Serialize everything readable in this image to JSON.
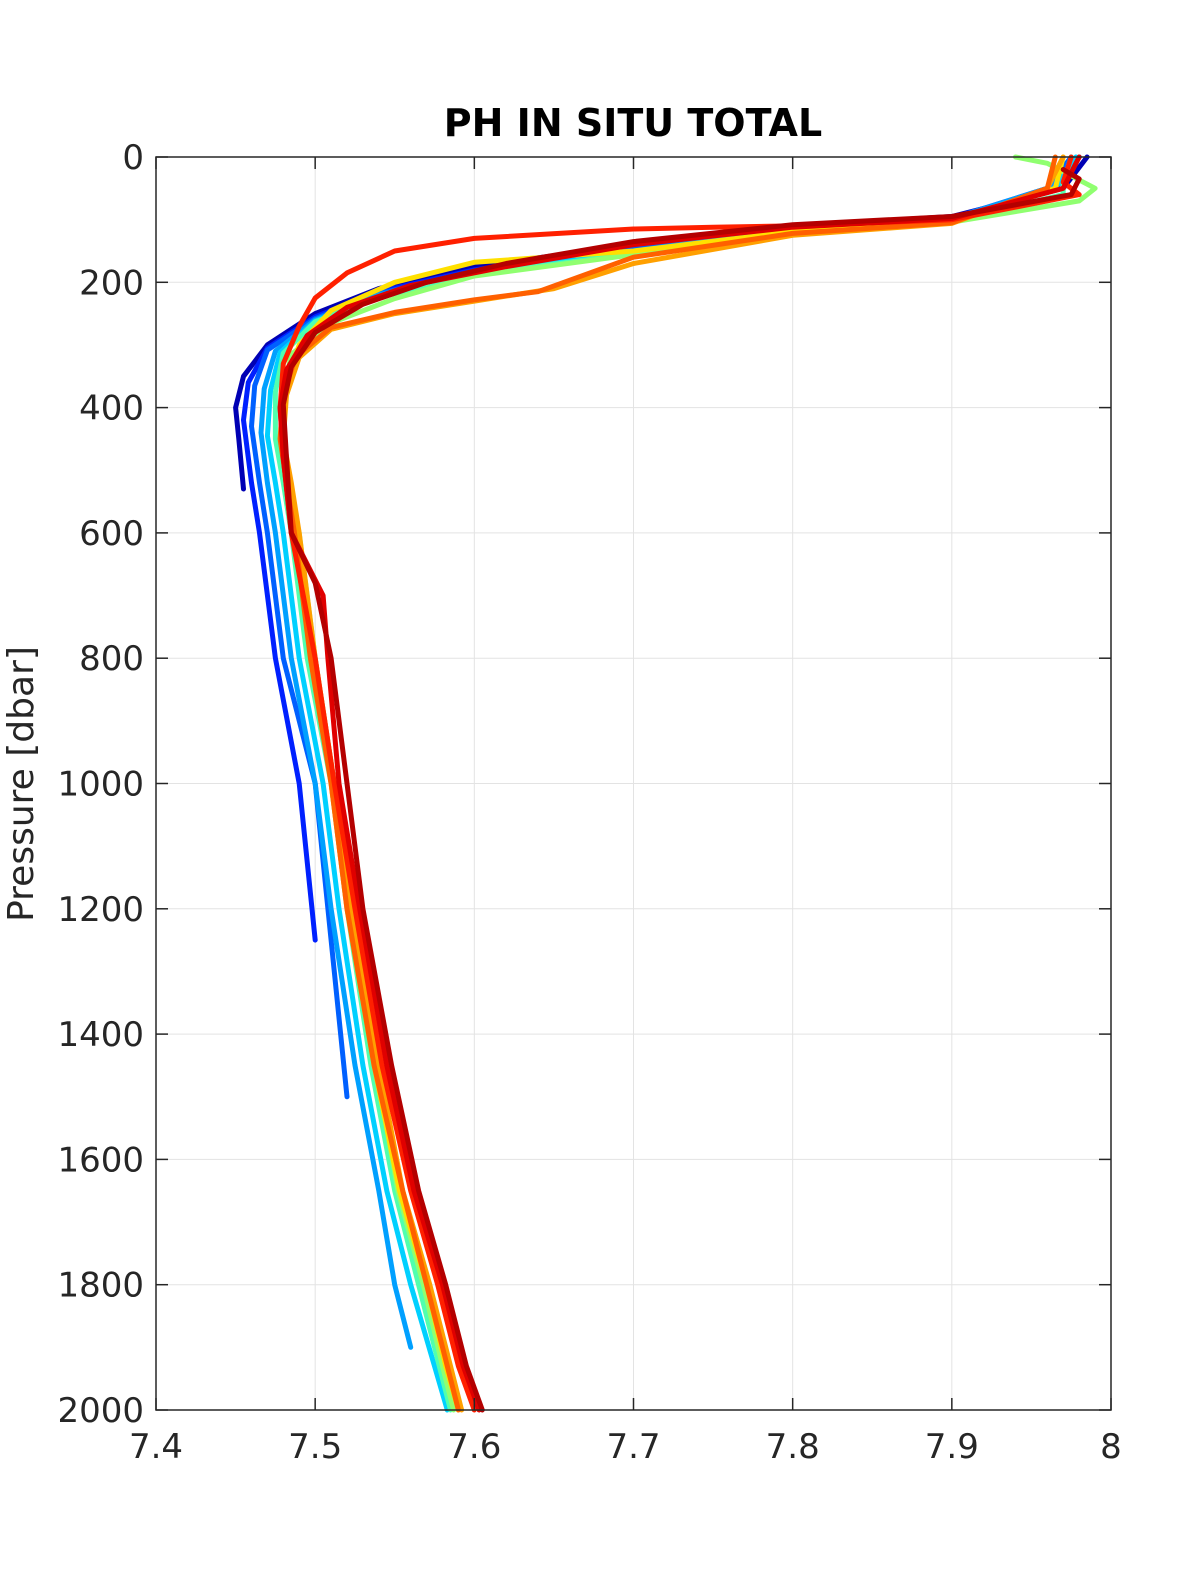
{
  "chart_data": {
    "type": "line",
    "title": "PH IN SITU TOTAL",
    "xlabel": "",
    "ylabel": "Pressure [dbar]",
    "xlim": [
      7.4,
      8
    ],
    "ylim": [
      0,
      2000
    ],
    "y_reversed": true,
    "grid": true,
    "legend": "none",
    "x_ticks": [
      "7.4",
      "7.5",
      "7.6",
      "7.7",
      "7.8",
      "7.9",
      "8"
    ],
    "y_ticks": [
      "0",
      "200",
      "400",
      "600",
      "800",
      "1000",
      "1200",
      "1400",
      "1600",
      "1800",
      "2000"
    ],
    "series": [
      {
        "color": "#0000b4",
        "points": [
          [
            7.985,
            0
          ],
          [
            7.97,
            50
          ],
          [
            7.9,
            95
          ],
          [
            7.8,
            110
          ],
          [
            7.7,
            140
          ],
          [
            7.6,
            175
          ],
          [
            7.54,
            210
          ],
          [
            7.5,
            250
          ],
          [
            7.47,
            300
          ],
          [
            7.455,
            350
          ],
          [
            7.45,
            400
          ],
          [
            7.452,
            450
          ],
          [
            7.455,
            530
          ]
        ]
      },
      {
        "color": "#0020ff",
        "points": [
          [
            7.98,
            0
          ],
          [
            7.965,
            50
          ],
          [
            7.9,
            97
          ],
          [
            7.8,
            112
          ],
          [
            7.7,
            145
          ],
          [
            7.6,
            180
          ],
          [
            7.54,
            215
          ],
          [
            7.5,
            255
          ],
          [
            7.47,
            305
          ],
          [
            7.458,
            360
          ],
          [
            7.455,
            420
          ],
          [
            7.46,
            520
          ],
          [
            7.465,
            600
          ],
          [
            7.475,
            800
          ],
          [
            7.49,
            1000
          ],
          [
            7.5,
            1250
          ]
        ]
      },
      {
        "color": "#0060ff",
        "points": [
          [
            7.975,
            0
          ],
          [
            7.96,
            50
          ],
          [
            7.9,
            98
          ],
          [
            7.8,
            113
          ],
          [
            7.7,
            147
          ],
          [
            7.6,
            182
          ],
          [
            7.54,
            218
          ],
          [
            7.5,
            258
          ],
          [
            7.47,
            308
          ],
          [
            7.462,
            365
          ],
          [
            7.46,
            430
          ],
          [
            7.465,
            520
          ],
          [
            7.47,
            600
          ],
          [
            7.48,
            800
          ],
          [
            7.5,
            1000
          ],
          [
            7.51,
            1250
          ],
          [
            7.52,
            1500
          ]
        ]
      },
      {
        "color": "#00a0ff",
        "points": [
          [
            7.98,
            0
          ],
          [
            7.96,
            50
          ],
          [
            7.9,
            99
          ],
          [
            7.8,
            115
          ],
          [
            7.7,
            150
          ],
          [
            7.6,
            185
          ],
          [
            7.54,
            220
          ],
          [
            7.5,
            260
          ],
          [
            7.475,
            310
          ],
          [
            7.468,
            370
          ],
          [
            7.466,
            440
          ],
          [
            7.47,
            520
          ],
          [
            7.475,
            600
          ],
          [
            7.485,
            800
          ],
          [
            7.5,
            1000
          ],
          [
            7.51,
            1200
          ],
          [
            7.525,
            1450
          ],
          [
            7.54,
            1650
          ],
          [
            7.55,
            1800
          ],
          [
            7.56,
            1900
          ]
        ]
      },
      {
        "color": "#00d0ff",
        "points": [
          [
            7.978,
            0
          ],
          [
            7.965,
            50
          ],
          [
            7.9,
            100
          ],
          [
            7.8,
            116
          ],
          [
            7.7,
            152
          ],
          [
            7.6,
            187
          ],
          [
            7.54,
            222
          ],
          [
            7.5,
            262
          ],
          [
            7.478,
            312
          ],
          [
            7.472,
            372
          ],
          [
            7.47,
            445
          ],
          [
            7.475,
            520
          ],
          [
            7.48,
            600
          ],
          [
            7.49,
            800
          ],
          [
            7.505,
            1000
          ],
          [
            7.515,
            1200
          ],
          [
            7.53,
            1450
          ],
          [
            7.545,
            1650
          ],
          [
            7.56,
            1800
          ],
          [
            7.575,
            1930
          ],
          [
            7.583,
            2000
          ]
        ]
      },
      {
        "color": "#50ffaf",
        "points": [
          [
            7.975,
            0
          ],
          [
            7.97,
            40
          ],
          [
            7.97,
            60
          ],
          [
            7.9,
            102
          ],
          [
            7.8,
            118
          ],
          [
            7.7,
            154
          ],
          [
            7.6,
            188
          ],
          [
            7.54,
            224
          ],
          [
            7.5,
            263
          ],
          [
            7.48,
            313
          ],
          [
            7.475,
            375
          ],
          [
            7.475,
            450
          ],
          [
            7.48,
            520
          ],
          [
            7.485,
            600
          ],
          [
            7.495,
            800
          ],
          [
            7.51,
            1000
          ],
          [
            7.52,
            1200
          ],
          [
            7.535,
            1450
          ],
          [
            7.55,
            1650
          ],
          [
            7.565,
            1800
          ],
          [
            7.578,
            1930
          ],
          [
            7.585,
            2000
          ]
        ]
      },
      {
        "color": "#90ff70",
        "points": [
          [
            7.94,
            0
          ],
          [
            7.96,
            10
          ],
          [
            7.99,
            50
          ],
          [
            7.98,
            70
          ],
          [
            7.9,
            104
          ],
          [
            7.8,
            120
          ],
          [
            7.7,
            156
          ],
          [
            7.6,
            190
          ],
          [
            7.55,
            226
          ],
          [
            7.51,
            265
          ],
          [
            7.485,
            315
          ],
          [
            7.48,
            378
          ],
          [
            7.478,
            450
          ],
          [
            7.483,
            520
          ],
          [
            7.49,
            600
          ],
          [
            7.5,
            800
          ],
          [
            7.512,
            1000
          ],
          [
            7.522,
            1200
          ],
          [
            7.538,
            1450
          ],
          [
            7.552,
            1650
          ],
          [
            7.568,
            1800
          ],
          [
            7.58,
            1930
          ],
          [
            7.587,
            2000
          ]
        ]
      },
      {
        "color": "#ffe000",
        "points": [
          [
            7.97,
            0
          ],
          [
            7.965,
            50
          ],
          [
            7.9,
            103
          ],
          [
            7.8,
            119
          ],
          [
            7.7,
            150
          ],
          [
            7.6,
            168
          ],
          [
            7.55,
            200
          ],
          [
            7.51,
            245
          ],
          [
            7.49,
            300
          ],
          [
            7.482,
            360
          ],
          [
            7.48,
            440
          ],
          [
            7.483,
            520
          ],
          [
            7.488,
            600
          ],
          [
            7.498,
            800
          ],
          [
            7.51,
            1000
          ],
          [
            7.52,
            1200
          ],
          [
            7.537,
            1450
          ],
          [
            7.553,
            1650
          ],
          [
            7.57,
            1800
          ],
          [
            7.582,
            1930
          ],
          [
            7.59,
            2000
          ]
        ]
      },
      {
        "color": "#ffa000",
        "points": [
          [
            7.97,
            0
          ],
          [
            7.96,
            50
          ],
          [
            7.9,
            106
          ],
          [
            7.8,
            125
          ],
          [
            7.7,
            170
          ],
          [
            7.65,
            210
          ],
          [
            7.6,
            230
          ],
          [
            7.55,
            250
          ],
          [
            7.51,
            275
          ],
          [
            7.49,
            320
          ],
          [
            7.482,
            380
          ],
          [
            7.48,
            450
          ],
          [
            7.485,
            520
          ],
          [
            7.49,
            600
          ],
          [
            7.5,
            800
          ],
          [
            7.512,
            1000
          ],
          [
            7.522,
            1200
          ],
          [
            7.54,
            1450
          ],
          [
            7.555,
            1650
          ],
          [
            7.572,
            1800
          ],
          [
            7.585,
            1930
          ],
          [
            7.592,
            2000
          ]
        ]
      },
      {
        "color": "#ff6000",
        "points": [
          [
            7.965,
            0
          ],
          [
            7.96,
            50
          ],
          [
            7.9,
            105
          ],
          [
            7.8,
            122
          ],
          [
            7.7,
            160
          ],
          [
            7.64,
            215
          ],
          [
            7.6,
            228
          ],
          [
            7.55,
            248
          ],
          [
            7.51,
            272
          ],
          [
            7.488,
            318
          ],
          [
            7.48,
            378
          ],
          [
            7.478,
            450
          ],
          [
            7.482,
            520
          ],
          [
            7.487,
            600
          ],
          [
            7.497,
            800
          ],
          [
            7.51,
            1000
          ],
          [
            7.52,
            1200
          ],
          [
            7.537,
            1450
          ],
          [
            7.555,
            1650
          ],
          [
            7.57,
            1800
          ],
          [
            7.583,
            1930
          ],
          [
            7.59,
            2000
          ]
        ]
      },
      {
        "color": "#ff2000",
        "points": [
          [
            7.975,
            0
          ],
          [
            7.97,
            40
          ],
          [
            7.98,
            60
          ],
          [
            7.9,
            100
          ],
          [
            7.8,
            110
          ],
          [
            7.75,
            112
          ],
          [
            7.7,
            115
          ],
          [
            7.6,
            130
          ],
          [
            7.55,
            150
          ],
          [
            7.52,
            185
          ],
          [
            7.5,
            225
          ],
          [
            7.49,
            270
          ],
          [
            7.48,
            330
          ],
          [
            7.478,
            400
          ],
          [
            7.48,
            480
          ],
          [
            7.485,
            600
          ],
          [
            7.5,
            800
          ],
          [
            7.512,
            1000
          ],
          [
            7.525,
            1200
          ],
          [
            7.542,
            1450
          ],
          [
            7.56,
            1650
          ],
          [
            7.577,
            1800
          ],
          [
            7.59,
            1930
          ],
          [
            7.6,
            2000
          ]
        ]
      },
      {
        "color": "#e00000",
        "points": [
          [
            7.98,
            0
          ],
          [
            7.97,
            50
          ],
          [
            7.9,
            98
          ],
          [
            7.8,
            112
          ],
          [
            7.7,
            140
          ],
          [
            7.62,
            175
          ],
          [
            7.56,
            205
          ],
          [
            7.52,
            240
          ],
          [
            7.495,
            285
          ],
          [
            7.482,
            340
          ],
          [
            7.478,
            400
          ],
          [
            7.48,
            480
          ],
          [
            7.485,
            600
          ],
          [
            7.505,
            700
          ],
          [
            7.508,
            800
          ],
          [
            7.515,
            1000
          ],
          [
            7.528,
            1200
          ],
          [
            7.545,
            1450
          ],
          [
            7.562,
            1650
          ],
          [
            7.58,
            1800
          ],
          [
            7.593,
            1930
          ],
          [
            7.603,
            2000
          ]
        ]
      },
      {
        "color": "#b40000",
        "points": [
          [
            7.97,
            20
          ],
          [
            7.98,
            35
          ],
          [
            7.975,
            60
          ],
          [
            7.9,
            95
          ],
          [
            7.8,
            108
          ],
          [
            7.7,
            135
          ],
          [
            7.62,
            170
          ],
          [
            7.57,
            200
          ],
          [
            7.53,
            235
          ],
          [
            7.5,
            280
          ],
          [
            7.485,
            335
          ],
          [
            7.48,
            395
          ],
          [
            7.482,
            480
          ],
          [
            7.485,
            600
          ],
          [
            7.5,
            680
          ],
          [
            7.51,
            800
          ],
          [
            7.52,
            1000
          ],
          [
            7.53,
            1200
          ],
          [
            7.548,
            1450
          ],
          [
            7.565,
            1650
          ],
          [
            7.582,
            1800
          ],
          [
            7.595,
            1930
          ],
          [
            7.605,
            2000
          ]
        ]
      }
    ]
  }
}
